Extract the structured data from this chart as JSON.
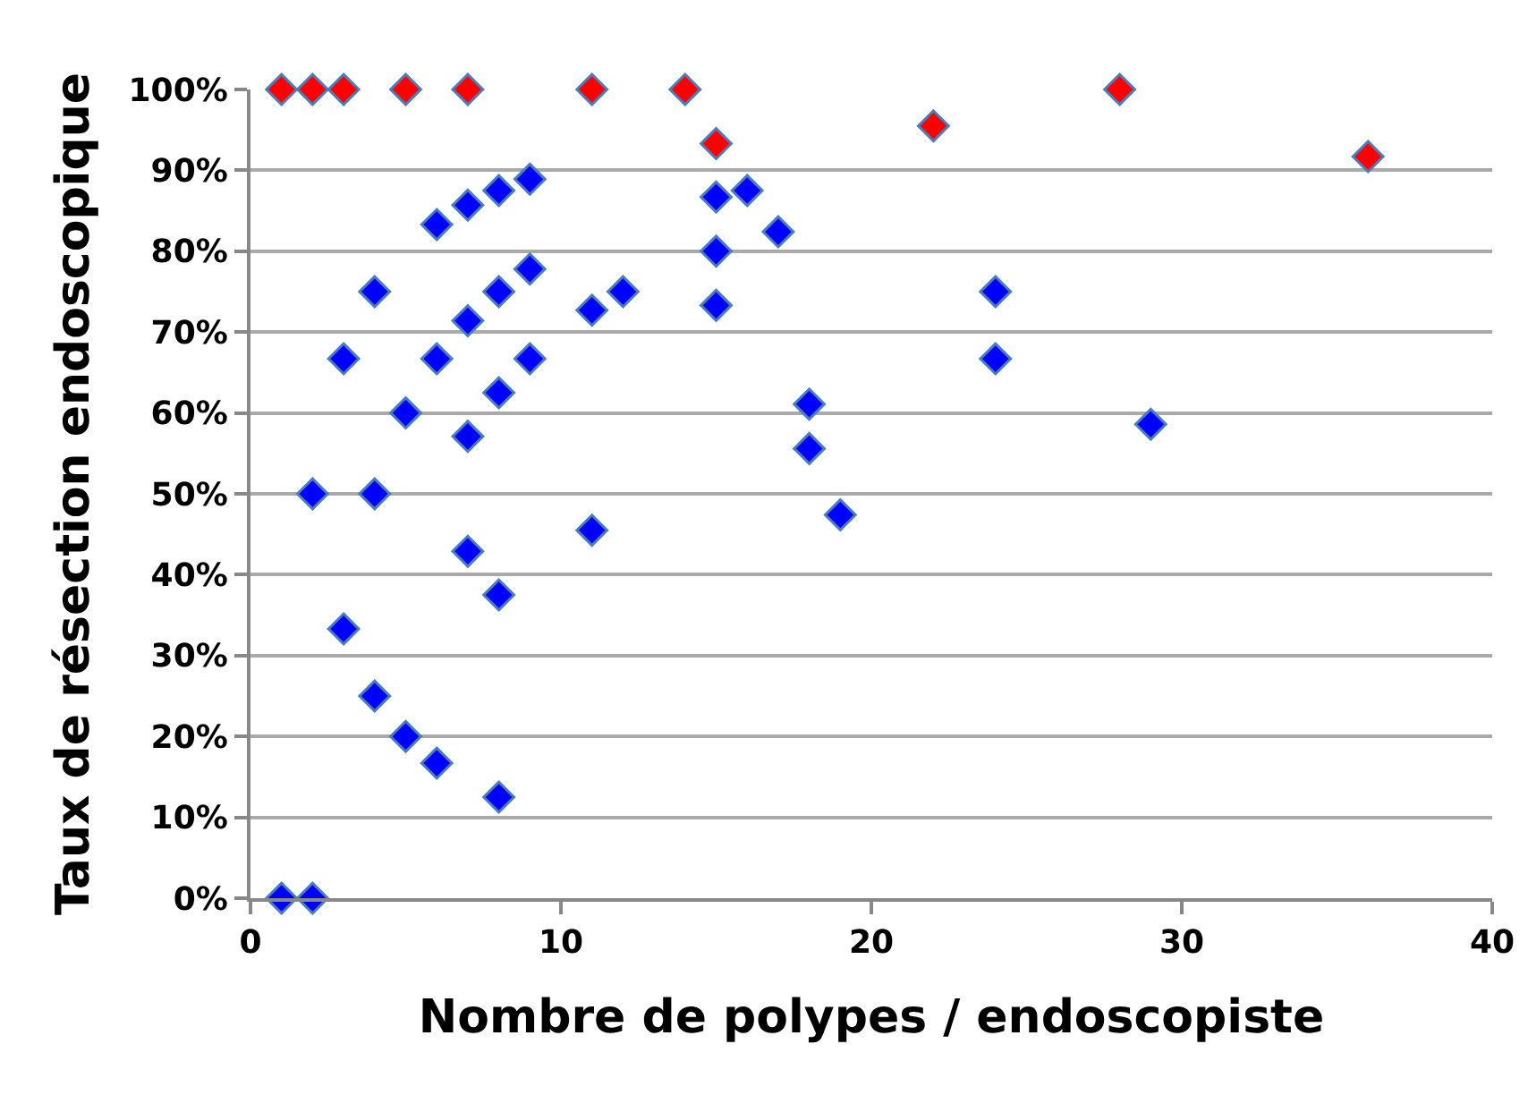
{
  "chart_data": {
    "type": "scatter",
    "xlabel": "Nombre de polypes / endoscopiste",
    "ylabel": "Taux de résection endoscopique",
    "marker": "diamond",
    "grid": "y",
    "xlim": [
      0,
      40
    ],
    "xticks": [
      0,
      10,
      20,
      30,
      40
    ],
    "ylim": [
      0,
      100
    ],
    "yticks": [
      {
        "value": 0,
        "label": "0%"
      },
      {
        "value": 10,
        "label": "10%"
      },
      {
        "value": 20,
        "label": "20%"
      },
      {
        "value": 30,
        "label": "30%"
      },
      {
        "value": 40,
        "label": "40%"
      },
      {
        "value": 50,
        "label": "50%"
      },
      {
        "value": 60,
        "label": "60%"
      },
      {
        "value": 70,
        "label": "70%"
      },
      {
        "value": 80,
        "label": "80%"
      },
      {
        "value": 90,
        "label": "90%"
      },
      {
        "value": 100,
        "label": "100%"
      }
    ],
    "series": [
      {
        "color": "#0000ff",
        "x": [
          6,
          7,
          8,
          9,
          4,
          7,
          8,
          9,
          3,
          6,
          9,
          8,
          5,
          7,
          2,
          4,
          7,
          8,
          3,
          4,
          5,
          6,
          8,
          1,
          2,
          11,
          12,
          11,
          15,
          16,
          15,
          17,
          15,
          18,
          18,
          19,
          24,
          24,
          29
        ],
        "values": [
          83.3,
          85.7,
          87.5,
          88.9,
          75,
          71.4,
          75,
          77.8,
          66.7,
          66.7,
          66.7,
          62.5,
          60,
          57.1,
          50,
          50,
          42.9,
          37.5,
          33.3,
          25,
          20,
          16.7,
          12.5,
          0,
          0,
          72.7,
          75,
          45.5,
          86.7,
          87.5,
          80,
          82.4,
          73.3,
          61.1,
          55.6,
          47.4,
          75,
          66.7,
          58.6
        ]
      },
      {
        "color": "#ff0000",
        "x": [
          1,
          2,
          3,
          5,
          7,
          11,
          14,
          15,
          22,
          28,
          36
        ],
        "values": [
          100,
          100,
          100,
          100,
          100,
          100,
          100,
          93.3,
          95.5,
          100,
          91.7
        ]
      }
    ]
  }
}
